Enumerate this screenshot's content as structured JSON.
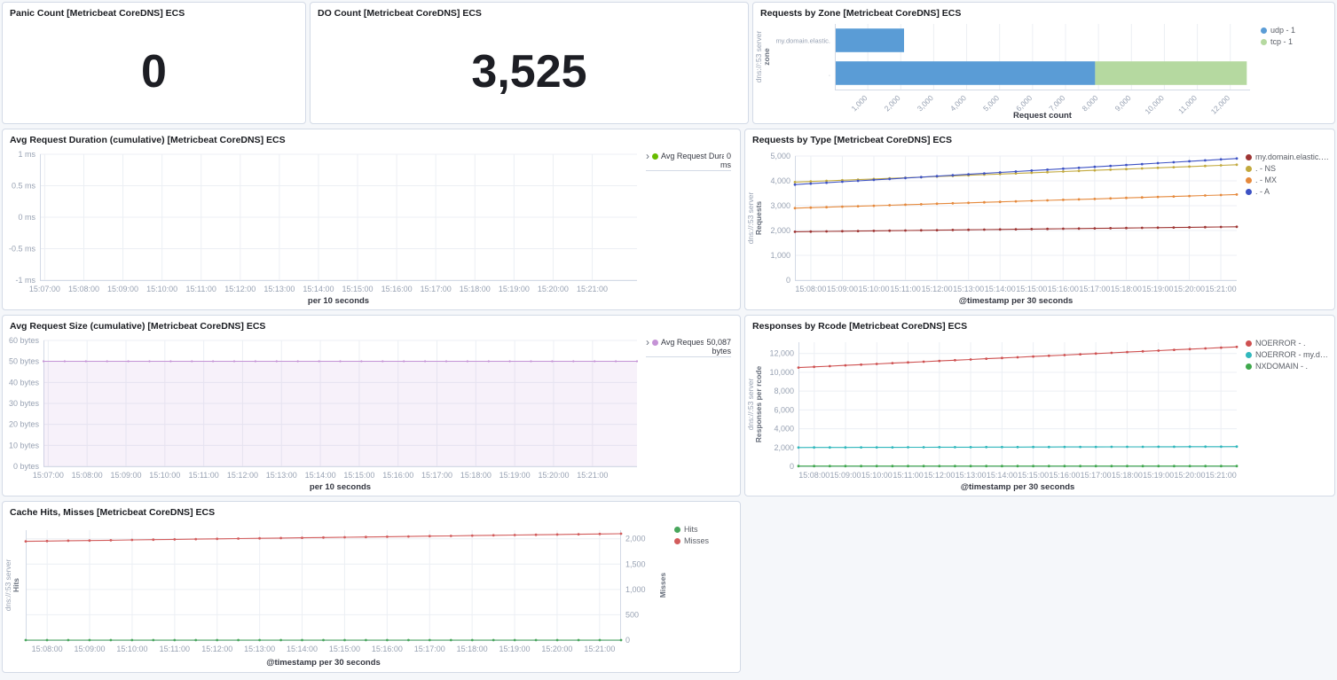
{
  "panels": {
    "panic": {
      "title": "Panic Count [Metricbeat CoreDNS] ECS",
      "value": "0"
    },
    "do_count": {
      "title": "DO Count [Metricbeat CoreDNS] ECS",
      "value": "3,525"
    },
    "zone": {
      "title": "Requests by Zone [Metricbeat CoreDNS] ECS"
    },
    "duration": {
      "title": "Avg Request Duration (cumulative) [Metricbeat CoreDNS] ECS",
      "legend": {
        "collapse": "›",
        "label": "Avg Request Dura...",
        "value": "0",
        "unit": "ms",
        "color": "#68BC00"
      }
    },
    "type": {
      "title": "Requests by Type [Metricbeat CoreDNS] ECS"
    },
    "size": {
      "title": "Avg Request Size (cumulative) [Metricbeat CoreDNS] ECS",
      "legend": {
        "collapse": "›",
        "label": "Avg Request ...",
        "value": "50,087",
        "unit": "bytes",
        "color": "#C593D6"
      }
    },
    "rcode": {
      "title": "Responses by Rcode [Metricbeat CoreDNS] ECS"
    },
    "cache": {
      "title": "Cache Hits, Misses [Metricbeat CoreDNS] ECS"
    }
  },
  "chart_data": [
    {
      "id": "zone",
      "type": "bar",
      "title": "Requests by Zone [Metricbeat CoreDNS] ECS",
      "orientation": "horizontal",
      "stacked": true,
      "categories": [
        "my.domain.elastic.",
        "."
      ],
      "series": [
        {
          "name": "udp - 1",
          "color": "#5A9CD6",
          "values": [
            2100,
            7900
          ]
        },
        {
          "name": "tcp - 1",
          "color": "#B5D9A0",
          "values": [
            0,
            4600
          ]
        }
      ],
      "xlabel": "Request count",
      "ylabel_lines": [
        "dns://:53 server",
        "zone"
      ],
      "xlim": [
        0,
        12600
      ],
      "xticks": [
        {
          "v": 1000,
          "t": "1,000"
        },
        {
          "v": 2000,
          "t": "2,000"
        },
        {
          "v": 3000,
          "t": "3,000"
        },
        {
          "v": 4000,
          "t": "4,000"
        },
        {
          "v": 5000,
          "t": "5,000"
        },
        {
          "v": 6000,
          "t": "6,000"
        },
        {
          "v": 7000,
          "t": "7,000"
        },
        {
          "v": 8000,
          "t": "8,000"
        },
        {
          "v": 9000,
          "t": "9,000"
        },
        {
          "v": 10000,
          "t": "10,000"
        },
        {
          "v": 11000,
          "t": "11,000"
        },
        {
          "v": 12000,
          "t": "12,000"
        }
      ],
      "legend_position": "right"
    },
    {
      "id": "duration",
      "type": "line",
      "title": "Avg Request Duration (cumulative) [Metricbeat CoreDNS] ECS",
      "xlabel": "per 10 seconds",
      "xticks": [
        "15:07:00",
        "15:08:00",
        "15:09:00",
        "15:10:00",
        "15:11:00",
        "15:12:00",
        "15:13:00",
        "15:14:00",
        "15:15:00",
        "15:16:00",
        "15:17:00",
        "15:18:00",
        "15:19:00",
        "15:20:00",
        "15:21:00"
      ],
      "ylim": [
        -1,
        1
      ],
      "yticks": [
        {
          "v": 1,
          "t": "1 ms"
        },
        {
          "v": 0.5,
          "t": "0.5 ms"
        },
        {
          "v": 0,
          "t": "0 ms"
        },
        {
          "v": -0.5,
          "t": "-0.5 ms"
        },
        {
          "v": -1,
          "t": "-1 ms"
        }
      ],
      "series": [
        {
          "name": "Avg Request Duration (cumulative)",
          "color": "#68BC00",
          "last_value": "0 ms",
          "values": []
        }
      ]
    },
    {
      "id": "type",
      "type": "line",
      "title": "Requests by Type [Metricbeat CoreDNS] ECS",
      "xlabel": "@timestamp per 30 seconds",
      "xticks": [
        "15:08:00",
        "15:09:00",
        "15:10:00",
        "15:11:00",
        "15:12:00",
        "15:13:00",
        "15:14:00",
        "15:15:00",
        "15:16:00",
        "15:17:00",
        "15:18:00",
        "15:19:00",
        "15:20:00",
        "15:21:00"
      ],
      "ylim": [
        0,
        5000
      ],
      "yticks": [
        {
          "v": 0,
          "t": "0"
        },
        {
          "v": 1000,
          "t": "1,000"
        },
        {
          "v": 2000,
          "t": "2,000"
        },
        {
          "v": 3000,
          "t": "3,000"
        },
        {
          "v": 4000,
          "t": "4,000"
        },
        {
          "v": 5000,
          "t": "5,000"
        }
      ],
      "ylabel_lines": [
        "dns://:53 server",
        "Requests"
      ],
      "series": [
        {
          "name": "my.domain.elastic. - A",
          "color": "#9E3533",
          "values": [
            1950,
            1957,
            1964,
            1971,
            1979,
            1986,
            1993,
            2000,
            2007,
            2014,
            2021,
            2029,
            2036,
            2043,
            2050,
            2057,
            2064,
            2071,
            2079,
            2086,
            2093,
            2100,
            2107,
            2114,
            2121,
            2129,
            2136,
            2143,
            2150
          ]
        },
        {
          "name": ". - NS",
          "color": "#C2A93D",
          "values": [
            3950,
            3975,
            4000,
            4025,
            4050,
            4075,
            4100,
            4125,
            4150,
            4175,
            4200,
            4225,
            4250,
            4275,
            4300,
            4325,
            4350,
            4375,
            4400,
            4425,
            4450,
            4475,
            4500,
            4525,
            4550,
            4575,
            4600,
            4625,
            4650
          ]
        },
        {
          "name": ". - MX",
          "color": "#E5893C",
          "values": [
            2900,
            2920,
            2939,
            2959,
            2979,
            2998,
            3018,
            3038,
            3057,
            3077,
            3096,
            3116,
            3136,
            3155,
            3175,
            3195,
            3214,
            3234,
            3254,
            3273,
            3293,
            3313,
            3332,
            3352,
            3371,
            3391,
            3411,
            3430,
            3450
          ]
        },
        {
          "name": ". - A",
          "color": "#3D52C4",
          "values": [
            3850,
            3888,
            3925,
            3963,
            4000,
            4038,
            4075,
            4113,
            4150,
            4188,
            4225,
            4263,
            4300,
            4338,
            4375,
            4413,
            4450,
            4488,
            4525,
            4563,
            4600,
            4638,
            4675,
            4713,
            4750,
            4788,
            4825,
            4863,
            4900
          ]
        }
      ]
    },
    {
      "id": "size",
      "type": "area",
      "title": "Avg Request Size (cumulative) [Metricbeat CoreDNS] ECS",
      "xlabel": "per 10 seconds",
      "xticks": [
        "15:07:00",
        "15:08:00",
        "15:09:00",
        "15:10:00",
        "15:11:00",
        "15:12:00",
        "15:13:00",
        "15:14:00",
        "15:15:00",
        "15:16:00",
        "15:17:00",
        "15:18:00",
        "15:19:00",
        "15:20:00",
        "15:21:00"
      ],
      "ylim": [
        0,
        60
      ],
      "yticks": [
        {
          "v": 0,
          "t": "0 bytes"
        },
        {
          "v": 10,
          "t": "10 bytes"
        },
        {
          "v": 20,
          "t": "20 bytes"
        },
        {
          "v": 30,
          "t": "30 bytes"
        },
        {
          "v": 40,
          "t": "40 bytes"
        },
        {
          "v": 50,
          "t": "50 bytes"
        },
        {
          "v": 60,
          "t": "60 bytes"
        }
      ],
      "series": [
        {
          "name": "Avg Request Size (cumulative)",
          "color": "#C593D6",
          "area": true,
          "last_value": "50,087 bytes",
          "values": [
            50.087,
            50.087,
            50.087,
            50.087,
            50.087,
            50.087,
            50.087,
            50.087,
            50.087,
            50.087,
            50.087,
            50.087,
            50.087,
            50.087,
            50.087,
            50.087,
            50.087,
            50.087,
            50.087,
            50.087,
            50.087,
            50.087,
            50.087,
            50.087,
            50.087,
            50.087,
            50.087,
            50.087,
            50.087
          ]
        }
      ]
    },
    {
      "id": "rcode",
      "type": "line",
      "title": "Responses by Rcode [Metricbeat CoreDNS] ECS",
      "xlabel": "@timestamp per 30 seconds",
      "xticks": [
        "15:08:00",
        "15:09:00",
        "15:10:00",
        "15:11:00",
        "15:12:00",
        "15:13:00",
        "15:14:00",
        "15:15:00",
        "15:16:00",
        "15:17:00",
        "15:18:00",
        "15:19:00",
        "15:20:00",
        "15:21:00"
      ],
      "ylim": [
        0,
        13200
      ],
      "yticks": [
        {
          "v": 0,
          "t": "0"
        },
        {
          "v": 2000,
          "t": "2,000"
        },
        {
          "v": 4000,
          "t": "4,000"
        },
        {
          "v": 6000,
          "t": "6,000"
        },
        {
          "v": 8000,
          "t": "8,000"
        },
        {
          "v": 10000,
          "t": "10,000"
        },
        {
          "v": 12000,
          "t": "12,000"
        }
      ],
      "ylabel_lines": [
        "dns://:53 server",
        "Responses per rcode"
      ],
      "series": [
        {
          "name": "NOERROR - .",
          "color": "#CE5050",
          "values": [
            10500,
            10579,
            10657,
            10736,
            10814,
            10893,
            10971,
            11050,
            11129,
            11207,
            11286,
            11364,
            11443,
            11521,
            11600,
            11679,
            11757,
            11836,
            11914,
            11993,
            12071,
            12150,
            12229,
            12307,
            12386,
            12464,
            12543,
            12621,
            12700
          ]
        },
        {
          "name": "NOERROR - my.dom...",
          "color": "#31B8BD",
          "values": [
            2000,
            2004,
            2007,
            2011,
            2014,
            2018,
            2021,
            2025,
            2029,
            2032,
            2036,
            2039,
            2043,
            2046,
            2050,
            2054,
            2057,
            2061,
            2064,
            2068,
            2071,
            2075,
            2079,
            2082,
            2086,
            2089,
            2093,
            2096,
            2100
          ]
        },
        {
          "name": "NXDOMAIN - .",
          "color": "#3FA84C",
          "values": [
            25,
            25,
            25,
            25,
            25,
            25,
            25,
            25,
            25,
            25,
            25,
            25,
            25,
            25,
            25,
            25,
            25,
            25,
            25,
            25,
            25,
            25,
            25,
            25,
            25,
            25,
            25,
            25,
            25
          ]
        }
      ]
    },
    {
      "id": "cache",
      "type": "line",
      "title": "Cache Hits, Misses [Metricbeat CoreDNS] ECS",
      "xlabel": "@timestamp per 30 seconds",
      "xticks": [
        "15:08:00",
        "15:09:00",
        "15:10:00",
        "15:11:00",
        "15:12:00",
        "15:13:00",
        "15:14:00",
        "15:15:00",
        "15:16:00",
        "15:17:00",
        "15:18:00",
        "15:19:00",
        "15:20:00",
        "15:21:00"
      ],
      "ylim": [
        0,
        2170
      ],
      "yticks": [
        {
          "v": 0,
          "t": "0"
        },
        {
          "v": 500,
          "t": "500"
        },
        {
          "v": 1000,
          "t": "1,000"
        },
        {
          "v": 1500,
          "t": "1,500"
        },
        {
          "v": 2000,
          "t": "2,000"
        }
      ],
      "ylabel_lines": [
        "dns://:53 server",
        "Hits"
      ],
      "y2label": "Misses",
      "series": [
        {
          "name": "Hits",
          "color": "#48A65C",
          "values": [
            0,
            0,
            0,
            0,
            0,
            0,
            0,
            0,
            0,
            0,
            0,
            0,
            0,
            0,
            0,
            0,
            0,
            0,
            0,
            0,
            0,
            0,
            0,
            0,
            0,
            0,
            0,
            0,
            0
          ]
        },
        {
          "name": "Misses",
          "color": "#D25C5C",
          "values": [
            1950,
            1955,
            1961,
            1966,
            1971,
            1977,
            1982,
            1988,
            1993,
            1998,
            2004,
            2009,
            2014,
            2020,
            2025,
            2030,
            2036,
            2041,
            2046,
            2052,
            2057,
            2063,
            2068,
            2073,
            2079,
            2084,
            2089,
            2095,
            2100
          ]
        }
      ]
    }
  ]
}
